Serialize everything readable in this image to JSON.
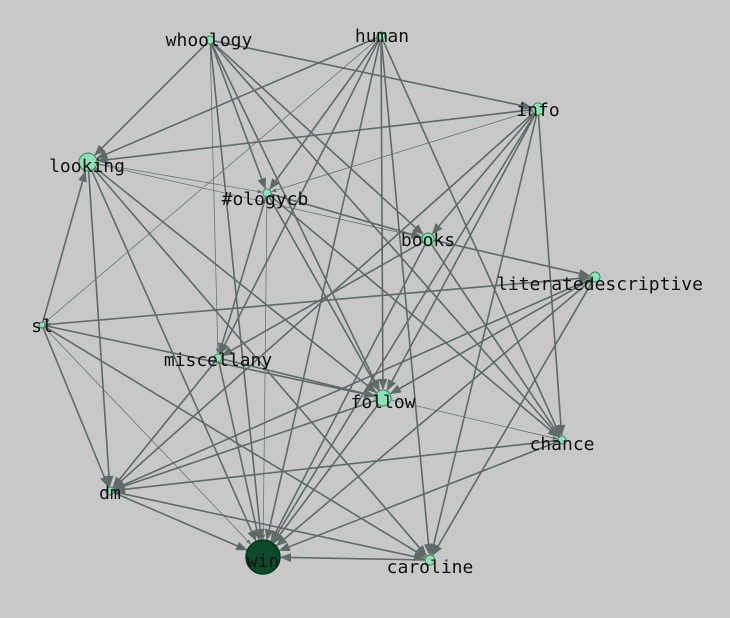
{
  "colors": {
    "background": "#c8c8c8",
    "edge": "#5e6b68",
    "node_light": "#8fe0b8",
    "node_mid": "#2f8a5a",
    "node_dark": "#0c4a2a"
  },
  "nodes": [
    {
      "id": "whoology",
      "label": "whoology"
    },
    {
      "id": "human",
      "label": "human"
    },
    {
      "id": "info",
      "label": "info"
    },
    {
      "id": "looking",
      "label": "looking"
    },
    {
      "id": "ologycb",
      "label": "#ologycb"
    },
    {
      "id": "books",
      "label": "books"
    },
    {
      "id": "literatedescriptive",
      "label": "literatedescriptive"
    },
    {
      "id": "sl",
      "label": "sl"
    },
    {
      "id": "miscellany",
      "label": "miscellany"
    },
    {
      "id": "follow",
      "label": "follow"
    },
    {
      "id": "chance",
      "label": "chance"
    },
    {
      "id": "dm",
      "label": "dm"
    },
    {
      "id": "win",
      "label": "win"
    },
    {
      "id": "caroline",
      "label": "caroline"
    }
  ],
  "edges": [
    [
      "whoology",
      "looking"
    ],
    [
      "whoology",
      "ologycb"
    ],
    [
      "whoology",
      "books"
    ],
    [
      "whoology",
      "miscellany"
    ],
    [
      "whoology",
      "follow"
    ],
    [
      "whoology",
      "win"
    ],
    [
      "whoology",
      "info"
    ],
    [
      "whoology",
      "chance"
    ],
    [
      "human",
      "looking"
    ],
    [
      "human",
      "ologycb"
    ],
    [
      "human",
      "sl"
    ],
    [
      "human",
      "miscellany"
    ],
    [
      "human",
      "win"
    ],
    [
      "human",
      "caroline"
    ],
    [
      "human",
      "chance"
    ],
    [
      "human",
      "follow"
    ],
    [
      "info",
      "looking"
    ],
    [
      "info",
      "ologycb"
    ],
    [
      "info",
      "win"
    ],
    [
      "info",
      "follow"
    ],
    [
      "info",
      "chance"
    ],
    [
      "info",
      "dm"
    ],
    [
      "info",
      "books"
    ],
    [
      "info",
      "caroline"
    ],
    [
      "looking",
      "books"
    ],
    [
      "looking",
      "follow"
    ],
    [
      "looking",
      "win"
    ],
    [
      "looking",
      "dm"
    ],
    [
      "looking",
      "caroline"
    ],
    [
      "ologycb",
      "books"
    ],
    [
      "ologycb",
      "follow"
    ],
    [
      "ologycb",
      "win"
    ],
    [
      "ologycb",
      "miscellany"
    ],
    [
      "ologycb",
      "chance"
    ],
    [
      "books",
      "win"
    ],
    [
      "books",
      "miscellany"
    ],
    [
      "books",
      "literatedescriptive"
    ],
    [
      "books",
      "chance"
    ],
    [
      "literatedescriptive",
      "sl"
    ],
    [
      "literatedescriptive",
      "dm"
    ],
    [
      "literatedescriptive",
      "win"
    ],
    [
      "literatedescriptive",
      "caroline"
    ],
    [
      "literatedescriptive",
      "follow"
    ],
    [
      "sl",
      "looking"
    ],
    [
      "sl",
      "dm"
    ],
    [
      "sl",
      "win"
    ],
    [
      "sl",
      "caroline"
    ],
    [
      "sl",
      "follow"
    ],
    [
      "miscellany",
      "follow"
    ],
    [
      "miscellany",
      "win"
    ],
    [
      "miscellany",
      "dm"
    ],
    [
      "follow",
      "win"
    ],
    [
      "follow",
      "chance"
    ],
    [
      "follow",
      "dm"
    ],
    [
      "chance",
      "win"
    ],
    [
      "chance",
      "dm"
    ],
    [
      "dm",
      "win"
    ],
    [
      "dm",
      "caroline"
    ],
    [
      "caroline",
      "win"
    ],
    [
      "looking",
      "ologycb"
    ],
    [
      "sl",
      "literatedescriptive"
    ]
  ]
}
